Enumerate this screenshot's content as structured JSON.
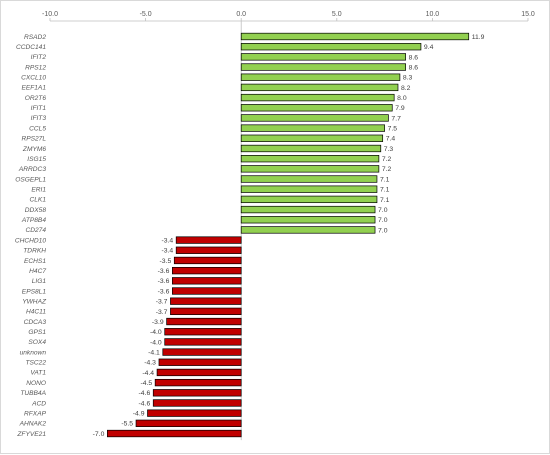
{
  "chart_data": {
    "type": "bar",
    "orientation": "horizontal",
    "title": "",
    "xlabel": "",
    "ylabel": "",
    "xlim": [
      -10,
      15
    ],
    "x_ticks": [
      -10,
      -5,
      0,
      5,
      10,
      15
    ],
    "x_tick_labels": [
      "-10.0",
      "-5.0",
      "0.0",
      "5.0",
      "10.0",
      "15.0"
    ],
    "x_axis_position": "top",
    "grid": false,
    "legend": "none",
    "positive_color": "#92d050",
    "negative_color": "#c00000",
    "bar_edge_color": "#000000",
    "categories": [
      "RSAD2",
      "CCDC141",
      "IFIT2",
      "RPS12",
      "CXCL10",
      "EEF1A1",
      "OR2T6",
      "IFIT1",
      "IFIT3",
      "CCL5",
      "RPS27L",
      "ZMYM6",
      "ISG15",
      "ARRDC3",
      "OSGEPL1",
      "ERI1",
      "CLK1",
      "DDX58",
      "ATP8B4",
      "CD274",
      "CHCHD10",
      "TDRKH",
      "ECHS1",
      "H4C7",
      "LIG1",
      "EPS8L1",
      "YWHAZ",
      "H4C11",
      "CDCA3",
      "GPS1",
      "SOX4",
      "unknown",
      "TSC22",
      "VAT1",
      "NONO",
      "TUBB4A",
      "ACD",
      "RFXAP",
      "AHNAK2",
      "ZFYVE21"
    ],
    "values": [
      11.9,
      9.4,
      8.6,
      8.6,
      8.3,
      8.2,
      8.0,
      7.9,
      7.7,
      7.5,
      7.4,
      7.3,
      7.2,
      7.2,
      7.1,
      7.1,
      7.1,
      7.0,
      7.0,
      7.0,
      -3.4,
      -3.4,
      -3.5,
      -3.6,
      -3.6,
      -3.6,
      -3.7,
      -3.7,
      -3.9,
      -4.0,
      -4.0,
      -4.1,
      -4.3,
      -4.4,
      -4.5,
      -4.6,
      -4.6,
      -4.9,
      -5.5,
      -7.0
    ],
    "value_labels": [
      "11.9",
      "9.4",
      "8.6",
      "8.6",
      "8.3",
      "8.2",
      "8.0",
      "7.9",
      "7.7",
      "7.5",
      "7.4",
      "7.3",
      "7.2",
      "7.2",
      "7.1",
      "7.1",
      "7.1",
      "7.0",
      "7.0",
      "7.0",
      "-3.4",
      "-3.4",
      "-3.5",
      "-3.6",
      "-3.6",
      "-3.6",
      "-3.7",
      "-3.7",
      "-3.9",
      "-4.0",
      "-4.0",
      "-4.1",
      "-4.3",
      "-4.4",
      "-4.5",
      "-4.6",
      "-4.6",
      "-4.9",
      "-5.5",
      "-7.0"
    ]
  }
}
